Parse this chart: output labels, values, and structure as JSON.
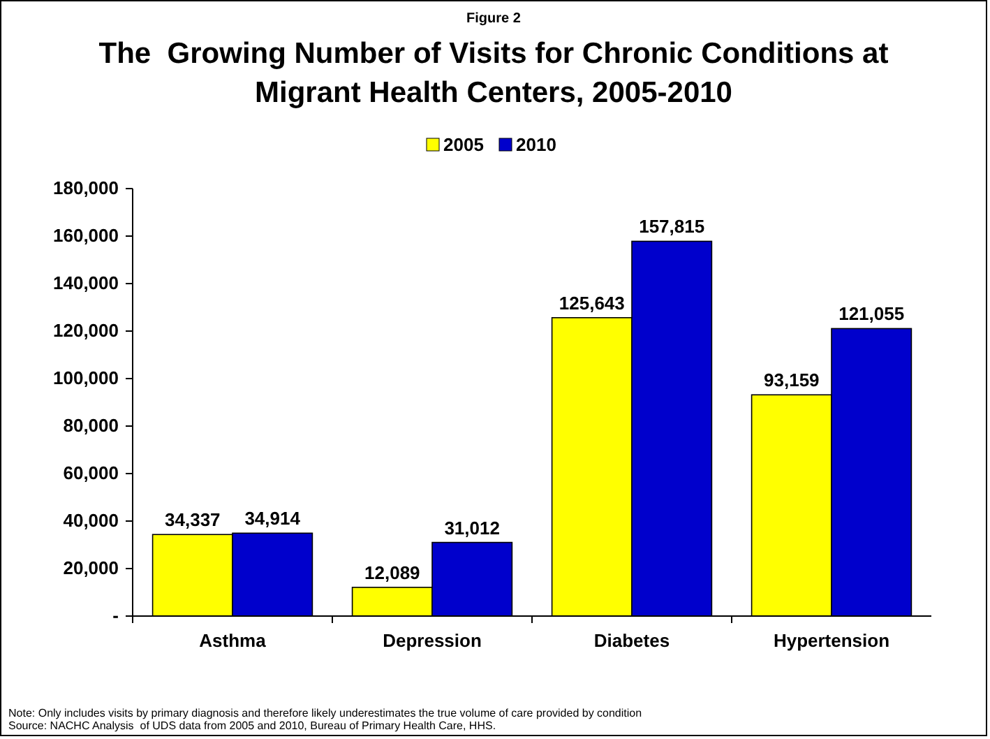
{
  "chart_data": {
    "type": "bar",
    "title": "The  Growing Number of Visits for Chronic Conditions at Migrant Health Centers, 2005-2010",
    "categories": [
      "Asthma",
      "Depression",
      "Diabetes",
      "Hypertension"
    ],
    "series": [
      {
        "name": "2005",
        "color": "#ffff00",
        "values": [
          34337,
          12089,
          125643,
          93159
        ],
        "value_labels": [
          "34,337",
          "12,089",
          "125,643",
          "93,159"
        ]
      },
      {
        "name": "2010",
        "color": "#0000cc",
        "values": [
          34914,
          31012,
          157815,
          121055
        ],
        "value_labels": [
          "34,914",
          "31,012",
          "157,815",
          "121,055"
        ]
      }
    ],
    "ylim": [
      0,
      180000
    ],
    "yticks": [
      {
        "value": 0,
        "label": "-"
      },
      {
        "value": 20000,
        "label": "20,000"
      },
      {
        "value": 40000,
        "label": "40,000"
      },
      {
        "value": 60000,
        "label": "60,000"
      },
      {
        "value": 80000,
        "label": "80,000"
      },
      {
        "value": 100000,
        "label": "100,000"
      },
      {
        "value": 120000,
        "label": "120,000"
      },
      {
        "value": 140000,
        "label": "140,000"
      },
      {
        "value": 160000,
        "label": "160,000"
      },
      {
        "value": 180000,
        "label": "180,000"
      }
    ],
    "grid": false,
    "legend": "top",
    "annotations": [
      "Figure 2",
      "Note: Only includes visits by primary diagnosis and therefore likely underestimates the true volume of care provided by condition",
      "Source: NACHC Analysis  of UDS data from 2005 and 2010, Bureau of Primary Health Care, HHS."
    ]
  }
}
